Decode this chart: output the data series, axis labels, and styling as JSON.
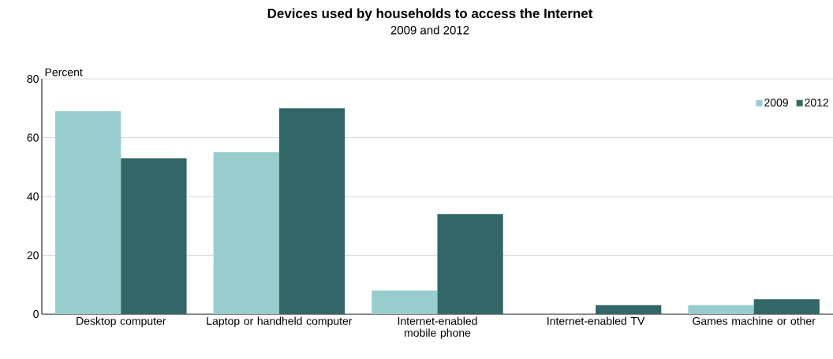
{
  "chart_data": {
    "type": "bar",
    "title": "Devices used by households to access the Internet",
    "subtitle": "2009 and 2012",
    "ylabel": "Percent",
    "categories": [
      "Desktop computer",
      "Laptop or handheld computer",
      "Internet-enabled mobile phone",
      "Internet-enabled TV",
      "Games machine or other"
    ],
    "series": [
      {
        "name": "2009",
        "color": "#99cccc",
        "values": [
          69,
          55,
          8,
          null,
          3
        ]
      },
      {
        "name": "2012",
        "color": "#336666",
        "values": [
          53,
          70,
          34,
          3,
          5
        ]
      }
    ],
    "ylim": [
      0,
      80
    ],
    "yticks": [
      0,
      20,
      40,
      60,
      80
    ],
    "grid": "y",
    "legend": "top right"
  }
}
